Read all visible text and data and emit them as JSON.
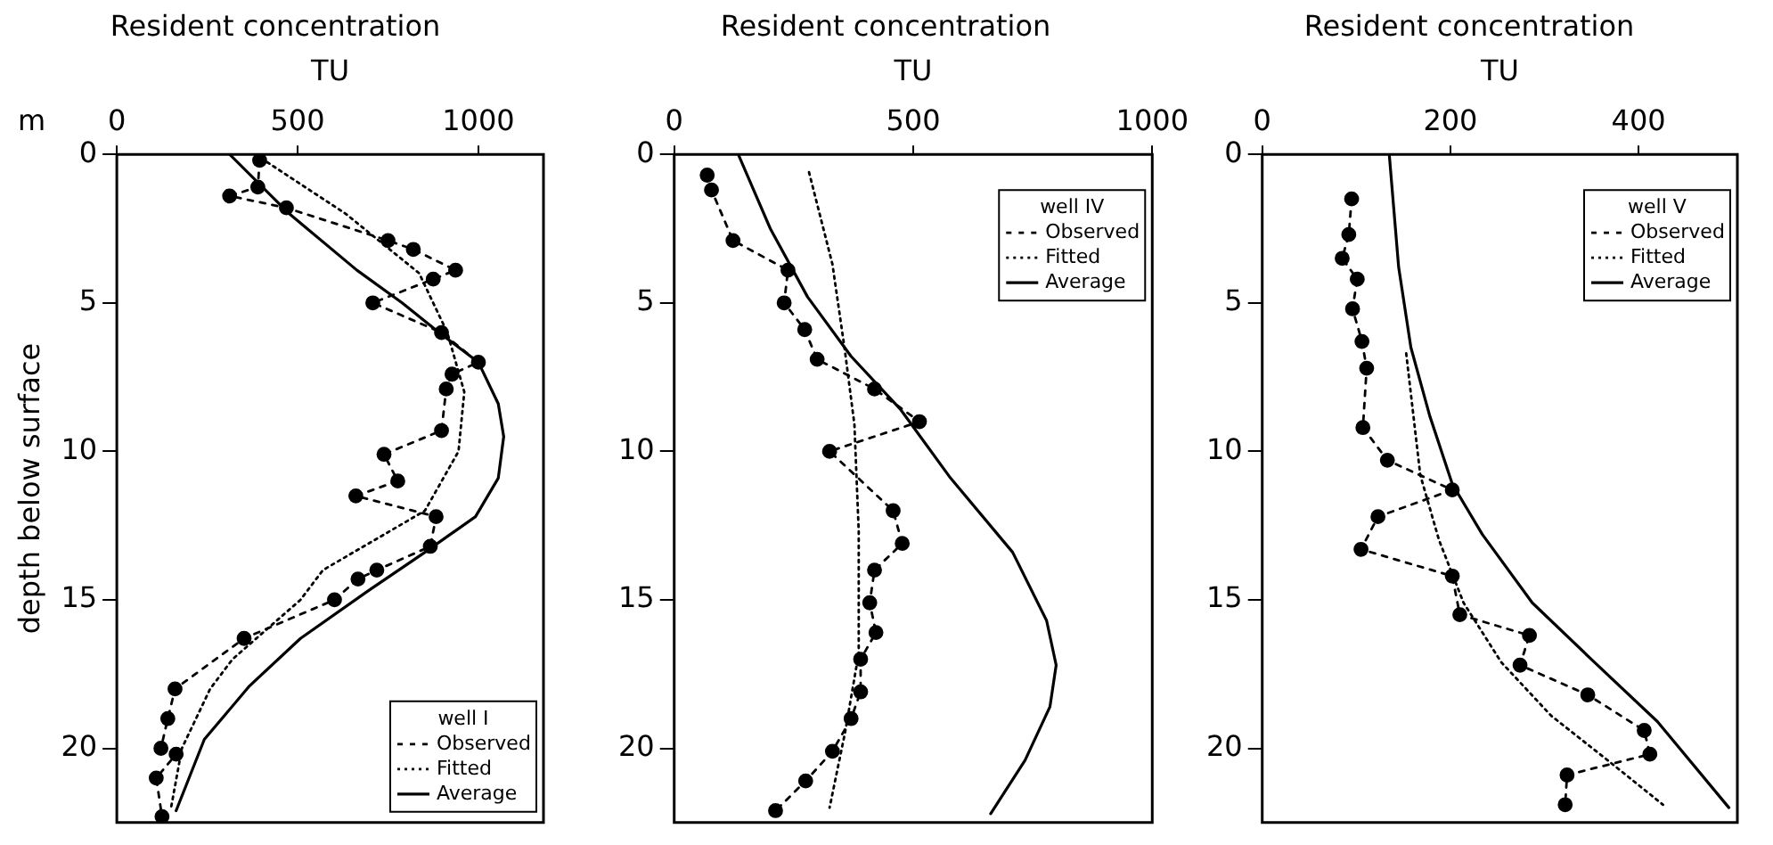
{
  "chart_data": [
    {
      "type": "line",
      "title": "Resident concentration",
      "xlabel": "TU",
      "ylabel": "depth below surface",
      "annotations": [
        "m"
      ],
      "legend": "bottom right",
      "legend_title": "well I",
      "grid": false,
      "xlim": [
        0,
        1180
      ],
      "xticks": [
        0,
        500,
        1000
      ],
      "ylim": [
        22.5,
        0
      ],
      "yticks": [
        0,
        5,
        10,
        15,
        20
      ],
      "series": [
        {
          "name": "Observed",
          "color": "#000000",
          "line_style": "dashed",
          "marker": "circle",
          "x": [
            395,
            390,
            312,
            469,
            750,
            820,
            937,
            875,
            708,
            898,
            1000,
            927,
            911,
            898,
            739,
            777,
            661,
            883,
            867,
            719,
            667,
            602,
            352,
            161,
            141,
            122,
            164,
            109,
            125
          ],
          "values": [
            0.2,
            1.1,
            1.4,
            1.8,
            2.9,
            3.2,
            3.9,
            4.2,
            5.0,
            6.0,
            7.0,
            7.4,
            7.9,
            9.3,
            10.1,
            11.0,
            11.5,
            12.2,
            13.2,
            14.0,
            14.3,
            15.0,
            16.3,
            18.0,
            19.0,
            20.0,
            20.2,
            21.0,
            22.3
          ]
        },
        {
          "name": "Fitted",
          "color": "#000000",
          "line_style": "dotted",
          "marker": "none",
          "x": [
            383,
            633,
            836,
            914,
            961,
            945,
            852,
            570,
            508,
            320,
            258,
            180,
            150
          ],
          "values": [
            0,
            2,
            4,
            6,
            8,
            10,
            12,
            14,
            15,
            17,
            18,
            20,
            22
          ]
        },
        {
          "name": "Average",
          "color": "#000000",
          "line_style": "solid",
          "marker": "none",
          "x": [
            312,
            477,
            664,
            789,
            891,
            1000,
            1055,
            1070,
            1055,
            992,
            852,
            695,
            508,
            367,
            242,
            164
          ],
          "values": [
            0,
            2,
            3.9,
            5,
            6,
            7,
            8.4,
            9.5,
            10.9,
            12.2,
            13.4,
            14.7,
            16.3,
            17.9,
            19.7,
            22.1
          ]
        }
      ]
    },
    {
      "type": "line",
      "title": "Resident concentration",
      "xlabel": "TU",
      "legend": "top right",
      "legend_title": "well IV",
      "grid": false,
      "xlim": [
        0,
        1000
      ],
      "xticks": [
        0,
        500,
        1000
      ],
      "ylim": [
        22.5,
        0
      ],
      "yticks": [
        0,
        5,
        10,
        15,
        20
      ],
      "series": [
        {
          "name": "Observed",
          "color": "#000000",
          "line_style": "dashed",
          "marker": "circle",
          "x": [
            69,
            78,
            123,
            238,
            230,
            273,
            299,
            419,
            513,
            325,
            458,
            477,
            419,
            409,
            422,
            390,
            390,
            370,
            331,
            275,
            212
          ],
          "values": [
            0.7,
            1.2,
            2.9,
            3.9,
            5.0,
            5.9,
            6.9,
            7.9,
            9.0,
            10.0,
            12.0,
            13.1,
            14.0,
            15.1,
            16.1,
            17.0,
            18.1,
            19.0,
            20.1,
            21.1,
            22.1
          ]
        },
        {
          "name": "Fitted",
          "color": "#000000",
          "line_style": "dotted",
          "marker": "none",
          "x": [
            282,
            331,
            357,
            377,
            386,
            386,
            357,
            325
          ],
          "values": [
            0.6,
            3.7,
            6.6,
            9.1,
            12.7,
            16.8,
            19.5,
            22.0
          ]
        },
        {
          "name": "Average",
          "color": "#000000",
          "line_style": "solid",
          "marker": "none",
          "x": [
            134,
            201,
            279,
            370,
            474,
            578,
            708,
            779,
            799,
            786,
            734,
            662
          ],
          "values": [
            0,
            2.5,
            4.8,
            6.8,
            8.6,
            10.9,
            13.4,
            15.7,
            17.2,
            18.6,
            20.4,
            22.2
          ]
        }
      ]
    },
    {
      "type": "line",
      "title": "Resident concentration",
      "xlabel": "TU",
      "legend": "top right",
      "legend_title": "well V",
      "grid": false,
      "xlim": [
        0,
        505
      ],
      "xticks": [
        0,
        200,
        400
      ],
      "ylim": [
        22.5,
        0
      ],
      "yticks": [
        0,
        5,
        10,
        15,
        20
      ],
      "series": [
        {
          "name": "Observed",
          "color": "#000000",
          "line_style": "dashed",
          "marker": "circle",
          "x": [
            95,
            92,
            85,
            101,
            96,
            106,
            111,
            107,
            133,
            202,
            123,
            105,
            202,
            210,
            284,
            274,
            346,
            406,
            412,
            324,
            322
          ],
          "values": [
            1.5,
            2.7,
            3.5,
            4.2,
            5.2,
            6.3,
            7.2,
            9.2,
            10.3,
            11.3,
            12.2,
            13.3,
            14.2,
            15.5,
            16.2,
            17.2,
            18.2,
            19.4,
            20.2,
            20.9,
            21.9
          ]
        },
        {
          "name": "Fitted",
          "color": "#000000",
          "line_style": "dotted",
          "marker": "none",
          "x": [
            153,
            168,
            188,
            214,
            254,
            307,
            367,
            426
          ],
          "values": [
            6.7,
            10.8,
            13.0,
            15.1,
            17.1,
            18.9,
            20.4,
            21.9
          ]
        },
        {
          "name": "Average",
          "color": "#000000",
          "line_style": "solid",
          "marker": "none",
          "x": [
            135,
            145,
            158,
            178,
            202,
            234,
            287,
            353,
            420,
            496
          ],
          "values": [
            0,
            3.8,
            6.5,
            8.8,
            11.1,
            12.8,
            15.1,
            17.1,
            19.1,
            22.0
          ]
        }
      ]
    }
  ]
}
